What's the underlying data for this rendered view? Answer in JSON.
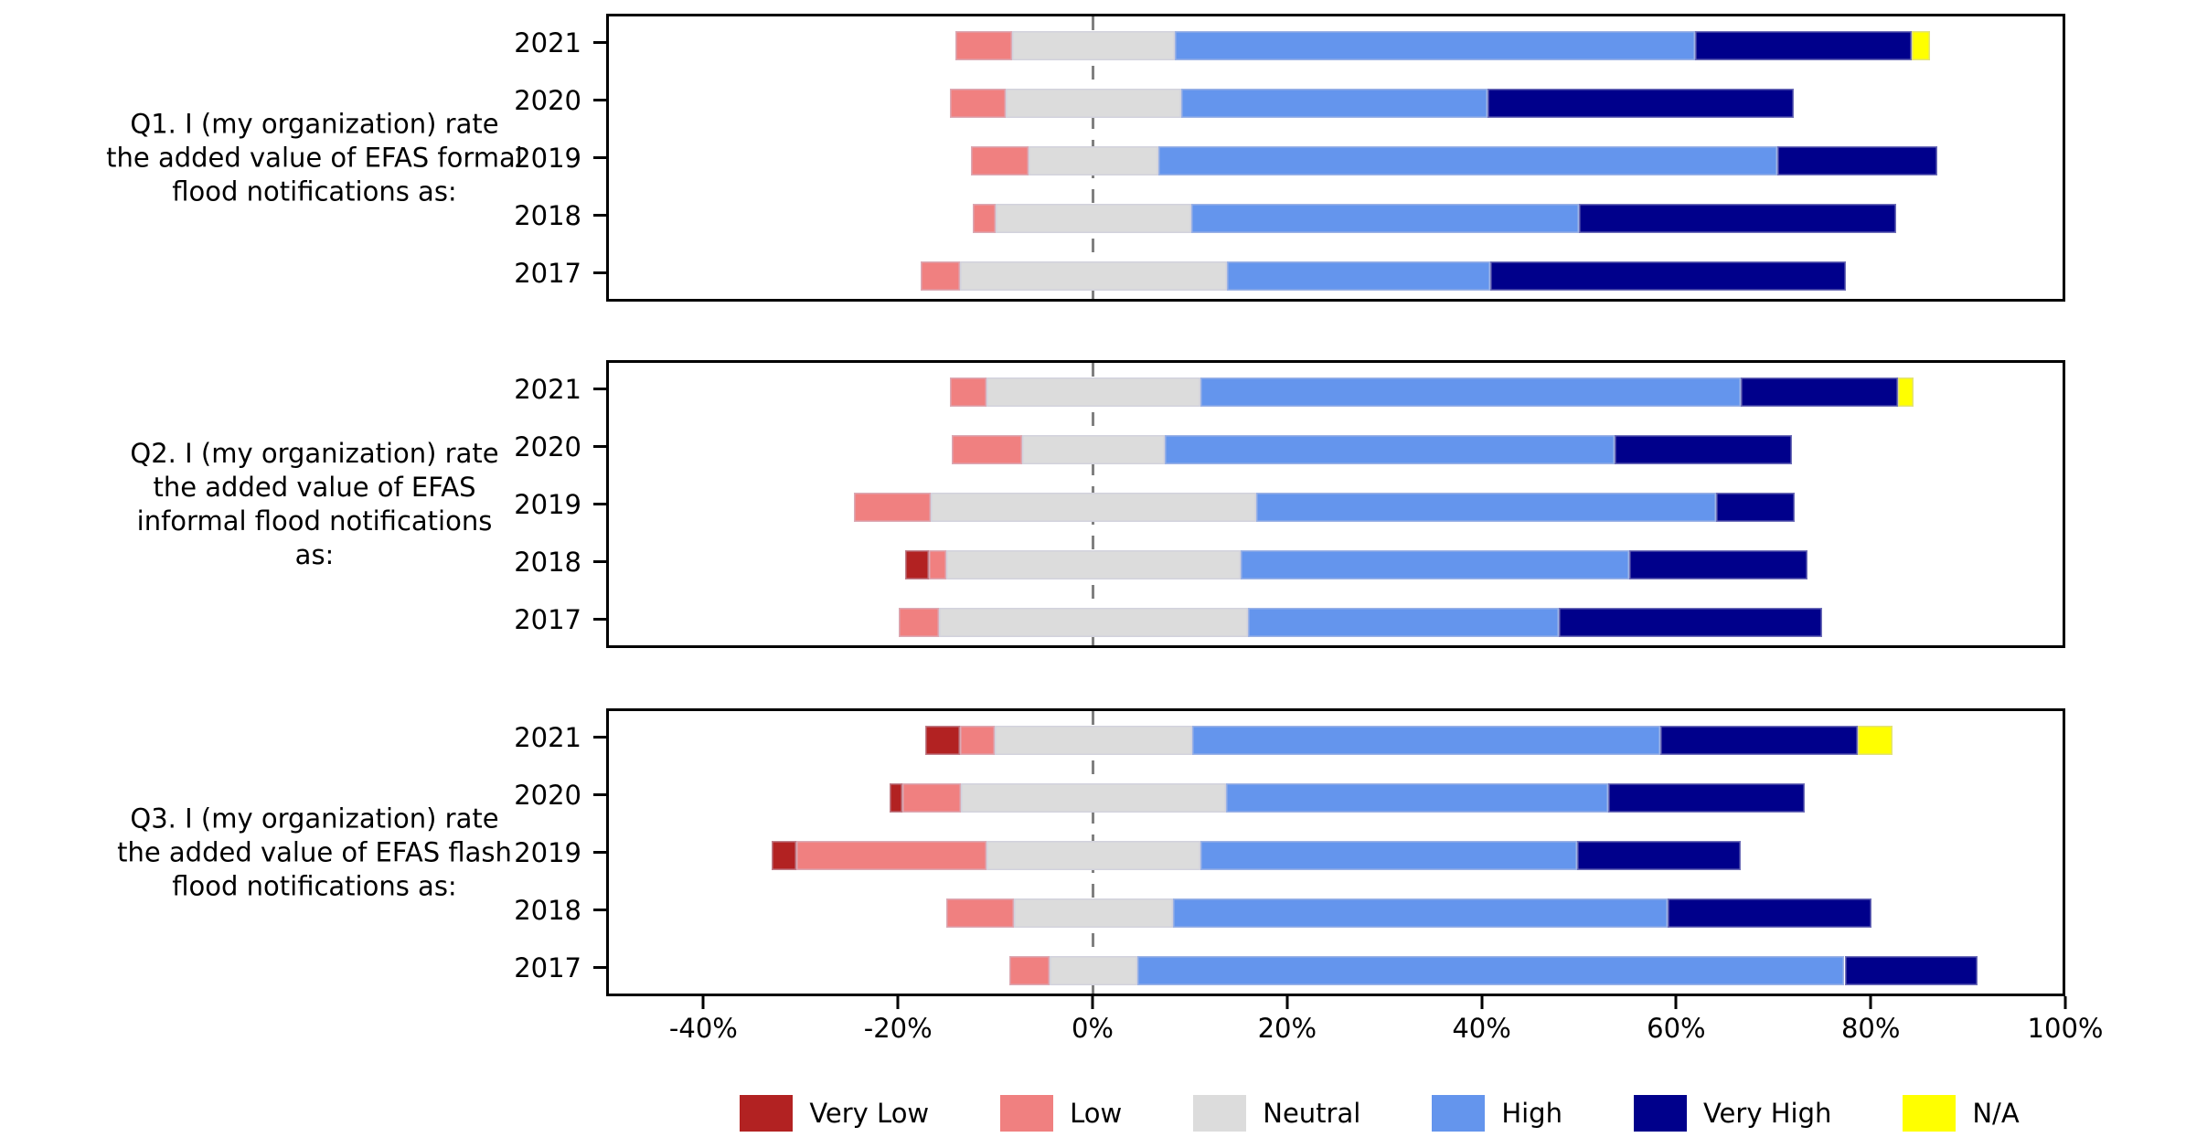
{
  "chart_data": {
    "type": "bar",
    "variant": "diverging-stacked-horizontal",
    "title": "",
    "x_axis": {
      "min": -50,
      "max": 100,
      "unit": "%",
      "grid": false,
      "ticks": [
        {
          "value": -40,
          "label": "-40%"
        },
        {
          "value": -20,
          "label": "-20%"
        },
        {
          "value": 0,
          "label": "0%"
        },
        {
          "value": 20,
          "label": "20%"
        },
        {
          "value": 40,
          "label": "40%"
        },
        {
          "value": 60,
          "label": "60%"
        },
        {
          "value": 80,
          "label": "80%"
        },
        {
          "value": 100,
          "label": "100%"
        }
      ],
      "zero_line": {
        "value": 0,
        "style": "dashed",
        "color": "#808080"
      }
    },
    "categories": [
      "Very Low",
      "Low",
      "Neutral",
      "High",
      "Very High",
      "N/A"
    ],
    "legend": [
      {
        "key": "very_low",
        "label": "Very Low",
        "color": "#B22222"
      },
      {
        "key": "low",
        "label": "Low",
        "color": "#F08080"
      },
      {
        "key": "neutral",
        "label": "Neutral",
        "color": "#DCDCDC"
      },
      {
        "key": "high",
        "label": "High",
        "color": "#6495ED"
      },
      {
        "key": "very_high",
        "label": "Very High",
        "color": "#00008B"
      },
      {
        "key": "na",
        "label": "N/A",
        "color": "#FFFF00"
      }
    ],
    "legend_position": "bottom-center",
    "stacking_rule": "neutral centered on zero; negatives = very_low + low + neutral/2",
    "panels": [
      {
        "id": "Q1",
        "question": "Q1. I (my organization) rate\nthe added value of EFAS formal\nflood notifications as:",
        "rows": [
          {
            "year": "2021",
            "values": {
              "very_low": 0,
              "low": 5.9,
              "neutral": 16.7,
              "high": 53.7,
              "very_high": 22.4,
              "na": 1.9
            }
          },
          {
            "year": "2020",
            "values": {
              "very_low": 0,
              "low": 5.7,
              "neutral": 18.2,
              "high": 31.6,
              "very_high": 31.6,
              "na": 0
            }
          },
          {
            "year": "2019",
            "values": {
              "very_low": 0,
              "low": 5.9,
              "neutral": 13.4,
              "high": 63.9,
              "very_high": 16.5,
              "na": 0
            }
          },
          {
            "year": "2018",
            "values": {
              "very_low": 0,
              "low": 2.4,
              "neutral": 20.1,
              "high": 40.0,
              "very_high": 32.8,
              "na": 0
            }
          },
          {
            "year": "2017",
            "values": {
              "very_low": 0,
              "low": 4.1,
              "neutral": 27.5,
              "high": 27.2,
              "very_high": 36.7,
              "na": 0
            }
          }
        ]
      },
      {
        "id": "Q2",
        "question": "Q2. I (my organization) rate\nthe added value of EFAS\ninformal flood notifications\nas:",
        "rows": [
          {
            "year": "2021",
            "values": {
              "very_low": 0,
              "low": 3.8,
              "neutral": 22.1,
              "high": 55.7,
              "very_high": 16.3,
              "na": 1.6
            }
          },
          {
            "year": "2020",
            "values": {
              "very_low": 0,
              "low": 7.2,
              "neutral": 14.8,
              "high": 46.4,
              "very_high": 18.3,
              "na": 0
            }
          },
          {
            "year": "2019",
            "values": {
              "very_low": 0,
              "low": 8.0,
              "neutral": 33.5,
              "high": 47.5,
              "very_high": 8.1,
              "na": 0
            }
          },
          {
            "year": "2018",
            "values": {
              "very_low": 2.4,
              "low": 1.8,
              "neutral": 30.4,
              "high": 40.1,
              "very_high": 18.4,
              "na": 0
            }
          },
          {
            "year": "2017",
            "values": {
              "very_low": 0,
              "low": 4.1,
              "neutral": 31.9,
              "high": 32.1,
              "very_high": 27.1,
              "na": 0
            }
          }
        ]
      },
      {
        "id": "Q3",
        "question": "Q3. I (my organization) rate\nthe added value of EFAS flash\nflood notifications as:",
        "rows": [
          {
            "year": "2021",
            "values": {
              "very_low": 3.6,
              "low": 3.6,
              "neutral": 20.4,
              "high": 48.3,
              "very_high": 20.4,
              "na": 3.6
            }
          },
          {
            "year": "2020",
            "values": {
              "very_low": 1.3,
              "low": 6.0,
              "neutral": 27.4,
              "high": 39.4,
              "very_high": 20.3,
              "na": 0
            }
          },
          {
            "year": "2019",
            "values": {
              "very_low": 2.6,
              "low": 19.6,
              "neutral": 22.1,
              "high": 38.9,
              "very_high": 16.8,
              "na": 0
            }
          },
          {
            "year": "2018",
            "values": {
              "very_low": 0,
              "low": 6.9,
              "neutral": 16.5,
              "high": 51.0,
              "very_high": 21.0,
              "na": 0
            }
          },
          {
            "year": "2017",
            "values": {
              "very_low": 0,
              "low": 4.2,
              "neutral": 9.0,
              "high": 73.0,
              "very_high": 13.7,
              "na": 0
            }
          }
        ]
      }
    ]
  }
}
